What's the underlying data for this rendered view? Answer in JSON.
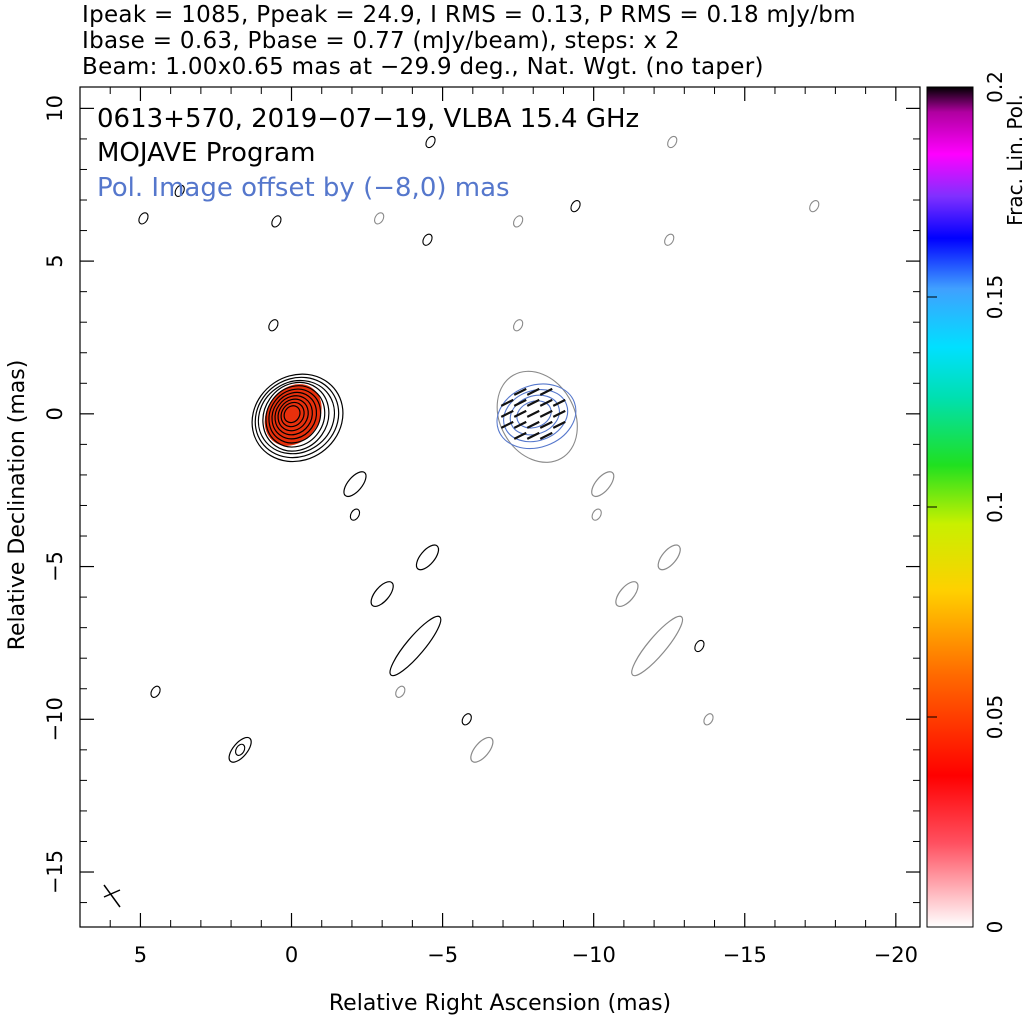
{
  "header": {
    "line1": "Ipeak = 1085, Ppeak = 24.9, I RMS = 0.13, P RMS = 0.18 mJy/bm",
    "line2": "Ibase = 0.63, Pbase = 0.77 (mJy/beam), steps: x 2",
    "line3": "Beam: 1.00x0.65 mas at −29.9 deg., Nat. Wgt. (no taper)"
  },
  "chart_data": {
    "type": "contour",
    "annotations": {
      "source": "0613+570, 2019−07−19, VLBA 15.4 GHz",
      "program": "MOJAVE Program",
      "pol_offset": "Pol. Image offset by (−8,0) mas"
    },
    "xlabel": "Relative Right Ascension (mas)",
    "ylabel": "Relative Declination (mas)",
    "colorbar_label": "Frac. Lin. Pol.",
    "xlim": [
      7,
      -20.8
    ],
    "ylim": [
      -16.8,
      10.7
    ],
    "x_ticks": [
      5,
      0,
      -5,
      -10,
      -15,
      -20
    ],
    "x_tick_labels": [
      "5",
      "0",
      "−5",
      "−10",
      "−15",
      "−20"
    ],
    "y_ticks": [
      10,
      5,
      0,
      -5,
      -10,
      -15
    ],
    "y_tick_labels": [
      "10",
      "5",
      "0",
      "−5",
      "−10",
      "−15"
    ],
    "colorbar_range": [
      0,
      0.2
    ],
    "colorbar_ticks": [
      0,
      0.05,
      0.1,
      0.15,
      0.2
    ],
    "colorbar_tick_labels": [
      "0",
      "0.05",
      "0.1",
      "0.15",
      "0.2"
    ],
    "core": {
      "x": 0,
      "y": 0,
      "contour_levels": 11,
      "frac_pol": 0.035
    },
    "pol_core": {
      "x": -8,
      "y": 0
    },
    "beam": {
      "major_mas": 1.0,
      "minor_mas": 0.65,
      "pa_deg": -29.9
    },
    "jet_components": [
      {
        "x": -2.1,
        "y": -2.3
      },
      {
        "x": -4.5,
        "y": -4.7
      },
      {
        "x": -3.0,
        "y": -5.9
      },
      {
        "x": -4.1,
        "y": -7.6
      },
      {
        "x": 1.7,
        "y": -11.0
      },
      {
        "x": -10.3,
        "y": -2.3
      },
      {
        "x": -12.5,
        "y": -4.7
      },
      {
        "x": -11.1,
        "y": -5.9
      },
      {
        "x": -12.1,
        "y": -7.6
      },
      {
        "x": -6.3,
        "y": -11.0
      }
    ],
    "colors": {
      "stokes_i": "#000000",
      "pol_contours": "#5577cc",
      "pol_gray": "#8a8a8a",
      "core_fill": "#e8300c"
    }
  }
}
